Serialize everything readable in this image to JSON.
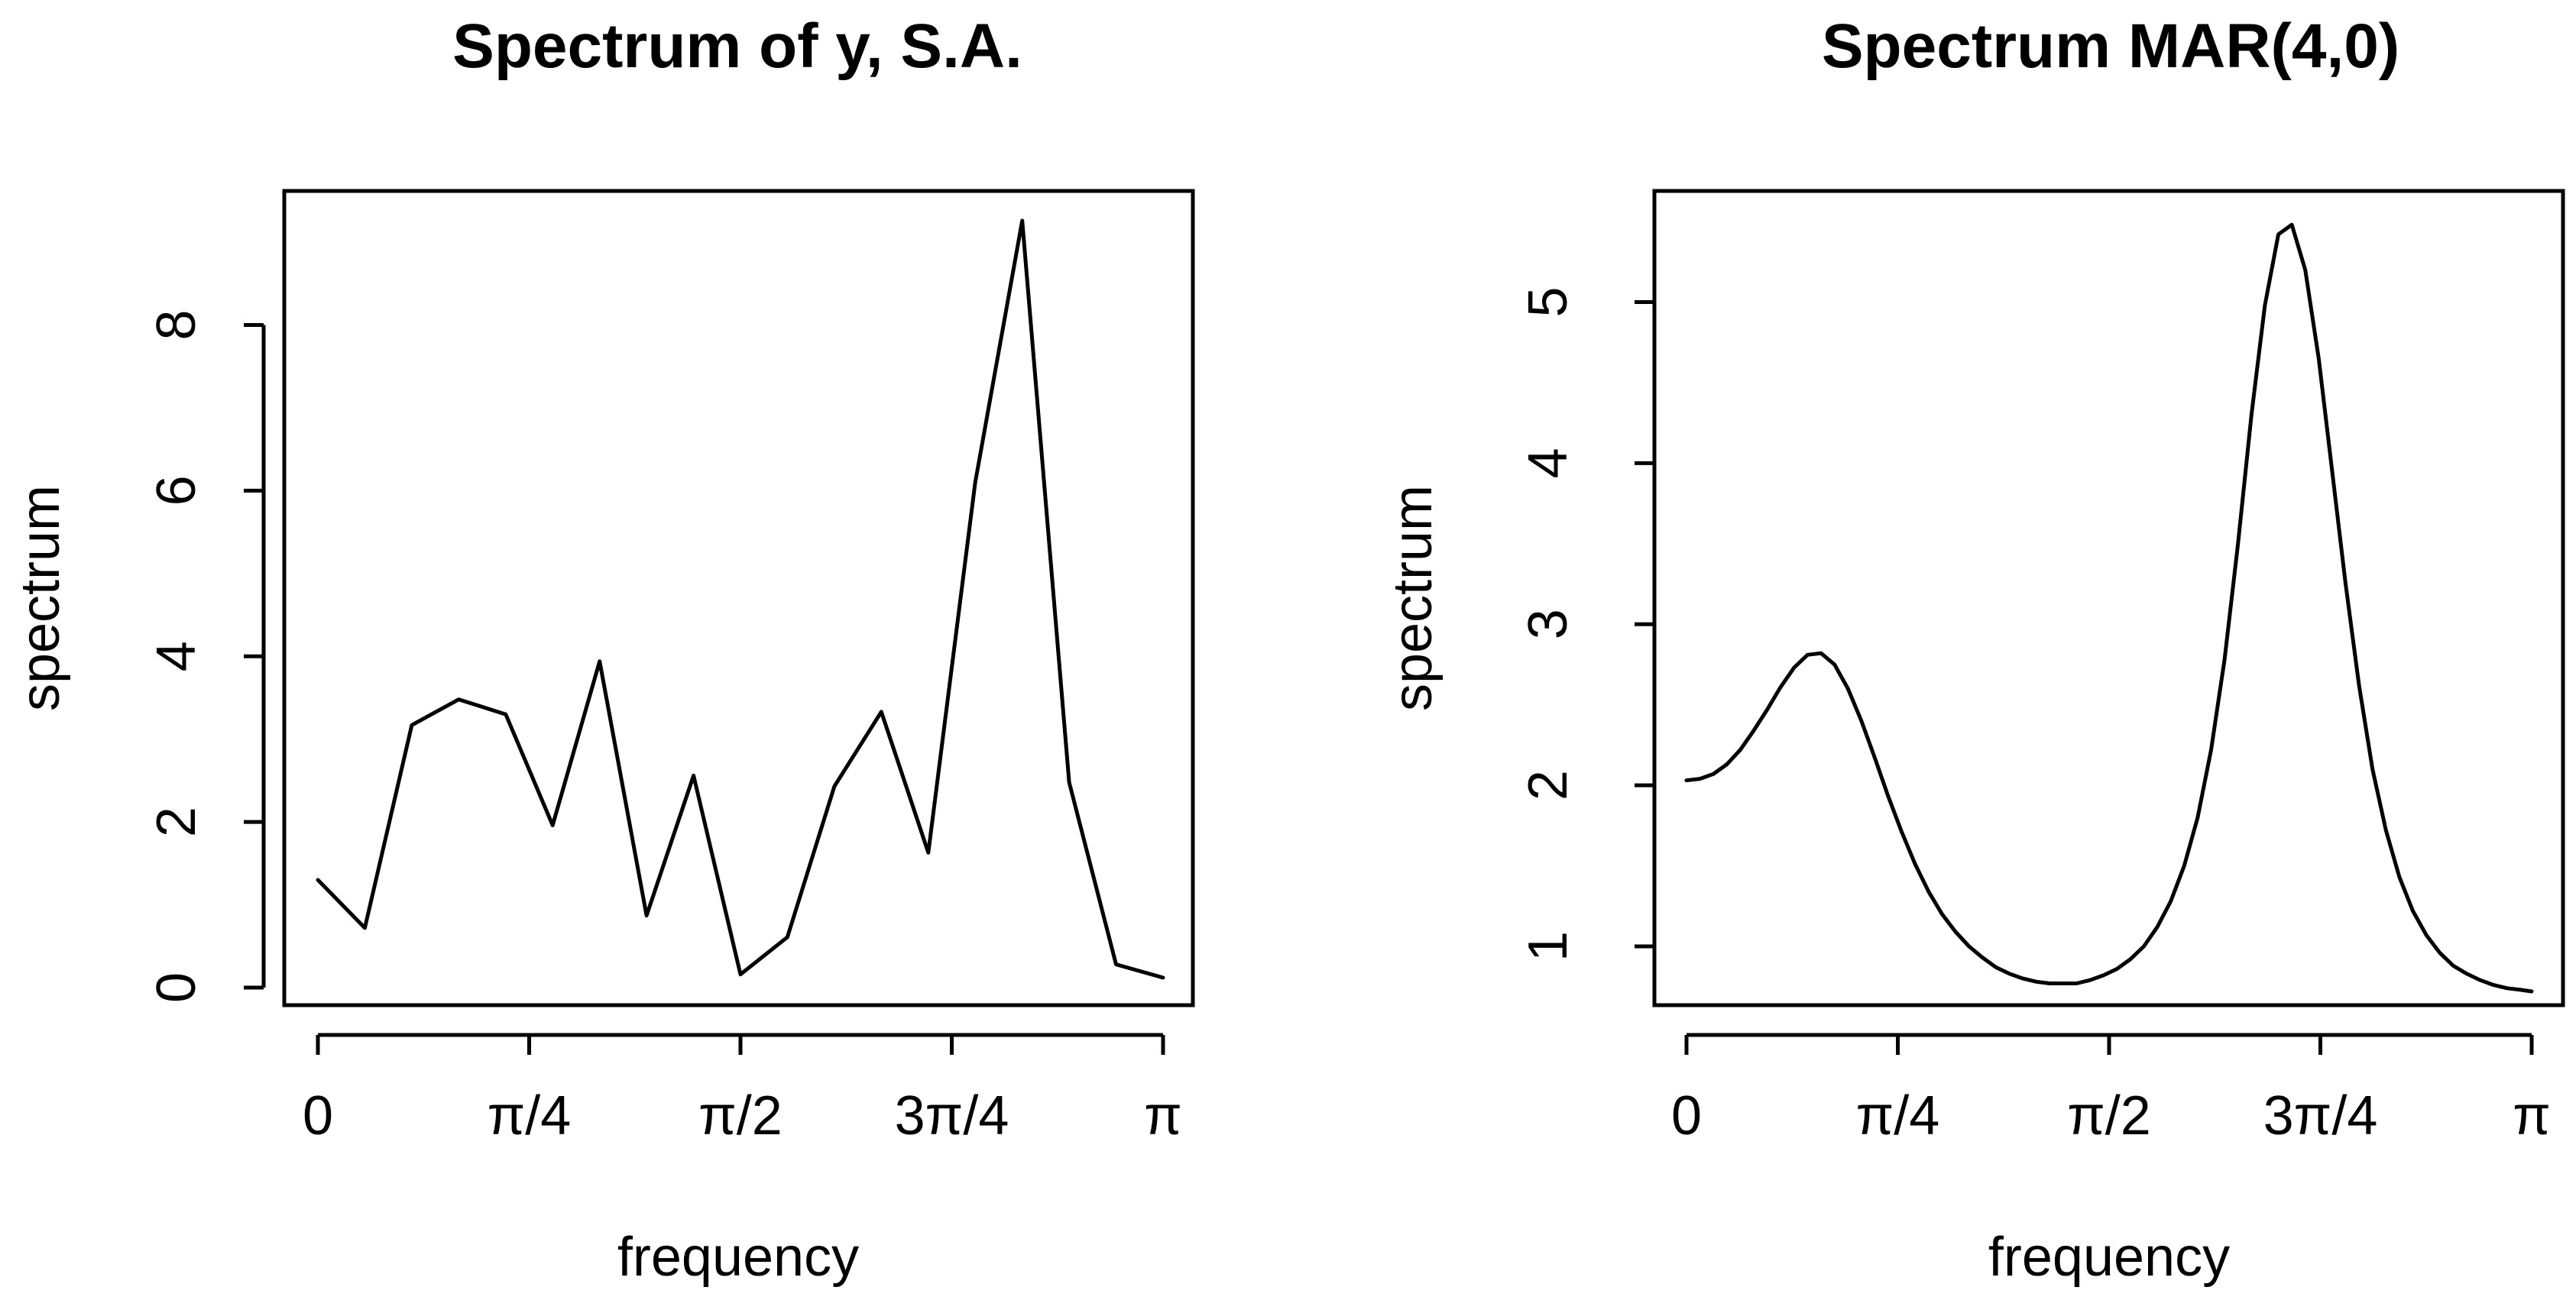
{
  "chart_data": [
    {
      "type": "line",
      "title": "Spectrum of y, S.A.",
      "xlabel": "frequency",
      "ylabel": "spectrum",
      "xlim": [
        0,
        3.14159
      ],
      "ylim": [
        0,
        9.25
      ],
      "x_ticks": [
        {
          "value": 0,
          "label": "0"
        },
        {
          "value": 0.785398,
          "label": "π/4"
        },
        {
          "value": 1.570796,
          "label": "π/2"
        },
        {
          "value": 2.356194,
          "label": "3π/4"
        },
        {
          "value": 3.141593,
          "label": "π"
        }
      ],
      "y_ticks": [
        {
          "value": 0,
          "label": "0"
        },
        {
          "value": 2,
          "label": "2"
        },
        {
          "value": 4,
          "label": "4"
        },
        {
          "value": 6,
          "label": "6"
        },
        {
          "value": 8,
          "label": "8"
        }
      ],
      "x": [
        0.0,
        0.1745,
        0.3491,
        0.5236,
        0.6981,
        0.8727,
        1.0472,
        1.2217,
        1.3963,
        1.5708,
        1.7453,
        1.9199,
        2.0944,
        2.2689,
        2.4435,
        2.618,
        2.7925,
        2.967,
        3.1416
      ],
      "values": [
        1.3,
        0.72,
        3.17,
        3.48,
        3.3,
        1.96,
        3.94,
        0.87,
        2.56,
        0.16,
        0.61,
        2.43,
        3.33,
        1.63,
        6.1,
        9.26,
        2.48,
        0.28,
        0.12
      ]
    },
    {
      "type": "line",
      "title": "Spectrum MAR(4,0)",
      "xlabel": "frequency",
      "ylabel": "spectrum",
      "xlim": [
        0,
        3.14159
      ],
      "ylim": [
        0.72,
        5.5
      ],
      "x_ticks": [
        {
          "value": 0,
          "label": "0"
        },
        {
          "value": 0.785398,
          "label": "π/4"
        },
        {
          "value": 1.570796,
          "label": "π/2"
        },
        {
          "value": 2.356194,
          "label": "3π/4"
        },
        {
          "value": 3.141593,
          "label": "π"
        }
      ],
      "y_ticks": [
        {
          "value": 1,
          "label": "1"
        },
        {
          "value": 2,
          "label": "2"
        },
        {
          "value": 3,
          "label": "3"
        },
        {
          "value": 4,
          "label": "4"
        },
        {
          "value": 5,
          "label": "5"
        }
      ],
      "x": [
        0.0,
        0.05,
        0.1,
        0.15,
        0.2,
        0.25,
        0.3,
        0.35,
        0.4,
        0.45,
        0.5,
        0.55,
        0.6,
        0.65,
        0.7,
        0.75,
        0.8,
        0.85,
        0.9,
        0.95,
        1.0,
        1.05,
        1.1,
        1.15,
        1.2,
        1.25,
        1.3,
        1.35,
        1.4,
        1.45,
        1.5,
        1.55,
        1.6,
        1.65,
        1.7,
        1.75,
        1.8,
        1.85,
        1.9,
        1.95,
        2.0,
        2.05,
        2.1,
        2.15,
        2.2,
        2.25,
        2.3,
        2.35,
        2.4,
        2.45,
        2.5,
        2.55,
        2.6,
        2.65,
        2.7,
        2.75,
        2.8,
        2.85,
        2.9,
        2.95,
        3.0,
        3.05,
        3.1,
        3.1416
      ],
      "values": [
        2.03,
        2.04,
        2.07,
        2.13,
        2.22,
        2.34,
        2.47,
        2.61,
        2.73,
        2.81,
        2.82,
        2.75,
        2.6,
        2.4,
        2.17,
        1.93,
        1.71,
        1.51,
        1.34,
        1.2,
        1.09,
        1.0,
        0.93,
        0.87,
        0.83,
        0.8,
        0.78,
        0.77,
        0.77,
        0.77,
        0.79,
        0.82,
        0.86,
        0.92,
        1.0,
        1.12,
        1.28,
        1.5,
        1.8,
        2.22,
        2.78,
        3.5,
        4.3,
        4.98,
        5.42,
        5.48,
        5.2,
        4.65,
        3.95,
        3.25,
        2.62,
        2.1,
        1.72,
        1.43,
        1.22,
        1.07,
        0.96,
        0.88,
        0.83,
        0.79,
        0.76,
        0.74,
        0.73,
        0.72
      ]
    }
  ]
}
